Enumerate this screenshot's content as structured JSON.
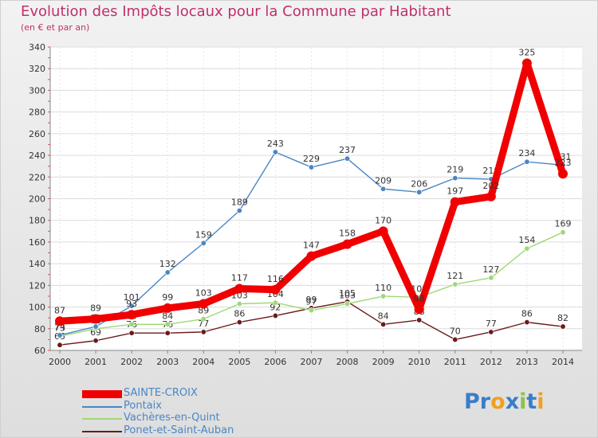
{
  "title": "Evolution des Impôts locaux pour la Commune par Habitant",
  "subtitle": "(en € et par an)",
  "logo": {
    "text": "Proxiti",
    "letters": [
      {
        "ch": "P",
        "color": "#3a7dc8"
      },
      {
        "ch": "r",
        "color": "#3a7dc8"
      },
      {
        "ch": "o",
        "color": "#f0a020"
      },
      {
        "ch": "x",
        "color": "#3a7dc8"
      },
      {
        "ch": "i",
        "color": "#8bc34a"
      },
      {
        "ch": "t",
        "color": "#3a7dc8"
      },
      {
        "ch": "i",
        "color": "#f0a020"
      }
    ]
  },
  "chart_data": {
    "type": "line",
    "title": "Evolution des Impôts locaux pour la Commune par Habitant",
    "subtitle": "(en € et par an)",
    "x": [
      2000,
      2001,
      2002,
      2003,
      2004,
      2005,
      2006,
      2007,
      2008,
      2009,
      2010,
      2011,
      2012,
      2013,
      2014
    ],
    "ylim": [
      60,
      340
    ],
    "yticks": [
      60,
      80,
      100,
      120,
      140,
      160,
      180,
      200,
      220,
      240,
      260,
      280,
      300,
      320,
      340
    ],
    "grid": "horizontal",
    "legend_position": "bottom-left",
    "series": [
      {
        "name": "Ponet-et-Saint-Auban",
        "color": "#6b1a1a",
        "values": [
          65,
          69,
          76,
          76,
          77,
          86,
          92,
          99,
          105,
          84,
          88,
          70,
          77,
          86,
          82
        ]
      },
      {
        "name": "Vachères-en-Quint",
        "color": "#9ed876",
        "values": [
          73,
          80,
          84,
          84,
          89,
          103,
          104,
          97,
          103,
          110,
          109,
          121,
          127,
          154,
          169
        ]
      },
      {
        "name": "Pontaix",
        "color": "#4a86c4",
        "values": [
          74,
          82,
          101,
          132,
          159,
          189,
          243,
          229,
          237,
          209,
          206,
          219,
          218,
          234,
          231
        ]
      },
      {
        "name": "SAINTE-CROIX",
        "color": "#f00000",
        "values": [
          87,
          89,
          93,
          99,
          103,
          117,
          116,
          147,
          158,
          170,
          98,
          197,
          202,
          325,
          223
        ]
      }
    ],
    "legend_order": [
      "SAINTE-CROIX",
      "Pontaix",
      "Vachères-en-Quint",
      "Ponet-et-Saint-Auban"
    ]
  }
}
